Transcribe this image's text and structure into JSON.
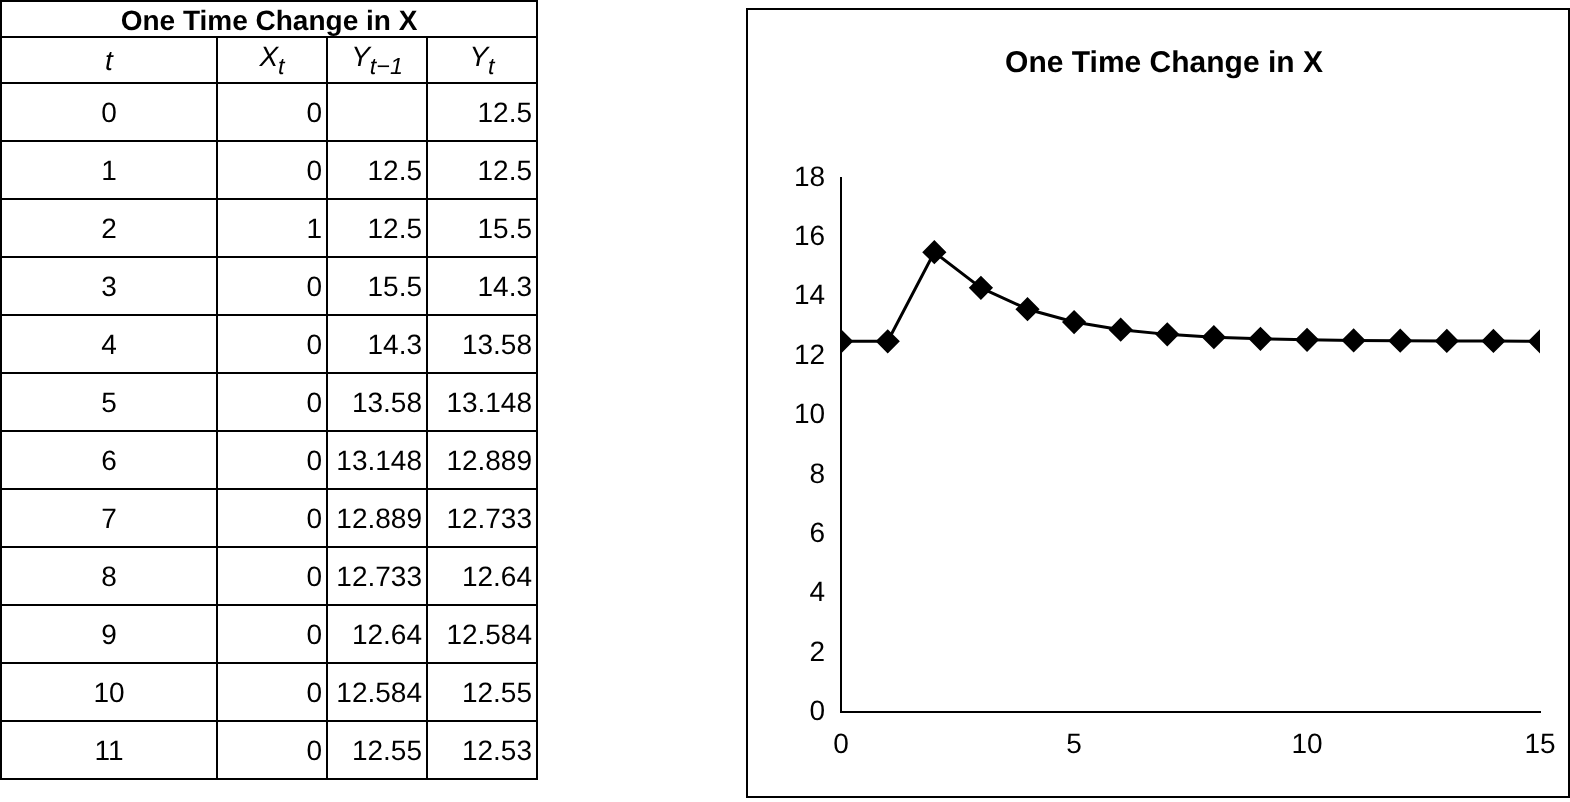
{
  "chart_data": [
    {
      "type": "heatmap",
      "title": "One Time Change in X",
      "ylabel": "t",
      "categories": [
        "X$_{t}$",
        "Y$_{t−1}$",
        "Y$_{t}$"
      ],
      "y_categories": [
        "0",
        "1",
        "2",
        "3",
        "4",
        "5",
        "6",
        "7",
        "8",
        "9",
        "10",
        "11"
      ],
      "cells": [
        [
          0,
          null,
          12.5
        ],
        [
          0,
          12.5,
          12.5
        ],
        [
          1,
          12.5,
          15.5
        ],
        [
          0,
          15.5,
          14.3
        ],
        [
          0,
          14.3,
          13.58
        ],
        [
          0,
          13.58,
          13.148
        ],
        [
          0,
          13.148,
          12.889
        ],
        [
          0,
          12.889,
          12.733
        ],
        [
          0,
          12.733,
          12.64
        ],
        [
          0,
          12.64,
          12.584
        ],
        [
          0,
          12.584,
          12.55
        ],
        [
          0,
          12.55,
          12.53
        ]
      ],
      "data_labels": true
    },
    {
      "type": "line",
      "title": "One Time Change in X",
      "x": [
        0,
        1,
        2,
        3,
        4,
        5,
        6,
        7,
        8,
        9,
        10,
        11,
        12,
        13,
        14,
        15
      ],
      "values": [
        12.5,
        12.5,
        15.5,
        14.3,
        13.58,
        13.148,
        12.889,
        12.733,
        12.64,
        12.584,
        12.55,
        12.53,
        12.52,
        12.51,
        12.51,
        12.5
      ],
      "color": "#000000",
      "xlim": [
        0,
        15
      ],
      "xticks": [
        0,
        5,
        10,
        15
      ],
      "ylim": [
        0,
        18
      ],
      "yticks": [
        0,
        2,
        4,
        6,
        8,
        10,
        12,
        14,
        16,
        18
      ],
      "marker": "diamond",
      "grid": false,
      "legend": false
    }
  ]
}
